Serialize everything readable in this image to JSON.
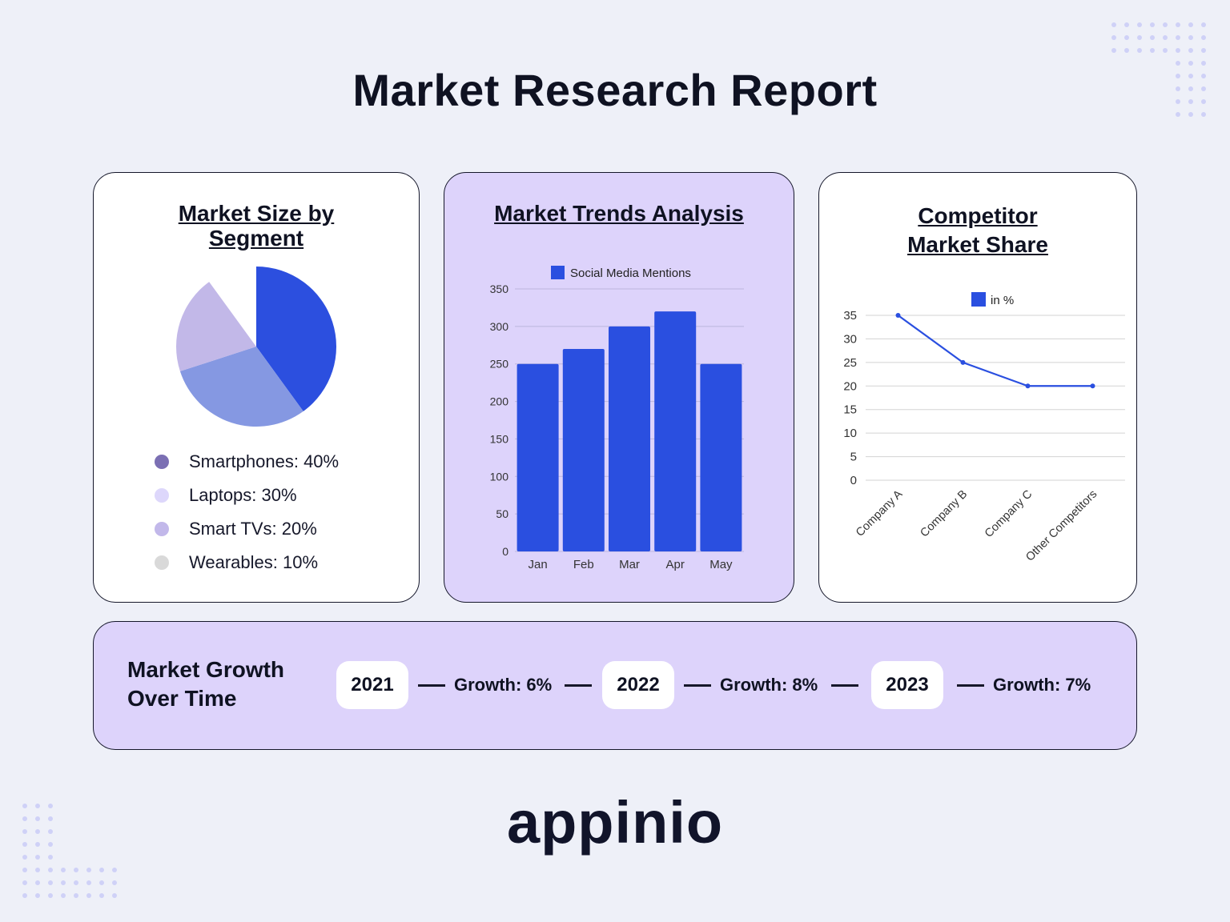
{
  "page": {
    "title": "Market Research Report",
    "logo": "appinio"
  },
  "market_size": {
    "title_line1": "Market Size by",
    "title_line2": "Segment",
    "legend": [
      {
        "label": "Smartphones: 40%",
        "color": "#7b6fb3"
      },
      {
        "label": "Laptops: 30%",
        "color": "#ddd7fb"
      },
      {
        "label": "Smart TVs: 20%",
        "color": "#c2b8ea"
      },
      {
        "label": "Wearables: 10%",
        "color": "#d9d9d9"
      }
    ]
  },
  "trends": {
    "title": "Market Trends Analysis"
  },
  "share": {
    "title_line1": "Competitor",
    "title_line2": "Market Share"
  },
  "growth": {
    "heading_line1": "Market Growth",
    "heading_line2": "Over Time",
    "items": [
      {
        "year": "2021",
        "growth": "Growth: 6%"
      },
      {
        "year": "2022",
        "growth": "Growth: 8%"
      },
      {
        "year": "2023",
        "growth": "Growth: 7%"
      }
    ]
  },
  "chart_data": [
    {
      "type": "pie",
      "categories": [
        "Smartphones",
        "Laptops",
        "Smart TVs",
        "Wearables"
      ],
      "values": [
        40,
        30,
        20,
        10
      ],
      "colors": [
        "#2c4fdf",
        "#8598e2",
        "#c2b8e8",
        "#ffffff"
      ]
    },
    {
      "type": "bar",
      "categories": [
        "Jan",
        "Feb",
        "Mar",
        "Apr",
        "May"
      ],
      "series": [
        {
          "name": "Social Media Mentions",
          "values": [
            250,
            270,
            300,
            320,
            250
          ]
        }
      ],
      "yticks": [
        "0",
        "50",
        "100",
        "150",
        "200",
        "250",
        "300",
        "350"
      ],
      "ylim": [
        0,
        350
      ],
      "grid": true,
      "legend": "top",
      "color": "#2a4fe0"
    },
    {
      "type": "line",
      "categories": [
        "Company A",
        "Company B",
        "Company C",
        "Other Competitors"
      ],
      "series": [
        {
          "name": "in %",
          "values": [
            35,
            25,
            20,
            20
          ]
        }
      ],
      "yticks": [
        "0",
        "5",
        "10",
        "15",
        "20",
        "25",
        "30",
        "35"
      ],
      "ylim": [
        0,
        35
      ],
      "grid": true,
      "legend": "top",
      "color": "#2a4fe0"
    }
  ]
}
